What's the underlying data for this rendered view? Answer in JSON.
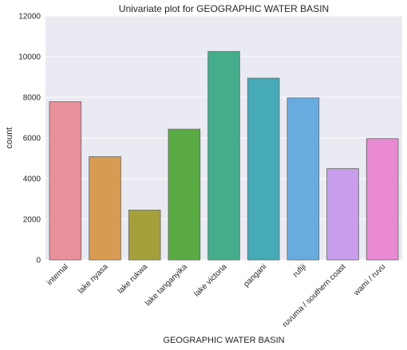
{
  "chart_data": {
    "type": "bar",
    "title": "Univariate plot for GEOGRAPHIC WATER BASIN",
    "xlabel": "GEOGRAPHIC WATER BASIN",
    "ylabel": "count",
    "ylim": [
      0,
      12000
    ],
    "yticks": [
      0,
      2000,
      4000,
      6000,
      8000,
      10000,
      12000
    ],
    "grid": true,
    "categories": [
      "internal",
      "lake nyasa",
      "lake rukwa",
      "lake tanganyika",
      "lake victoria",
      "pangani",
      "rufiji",
      "ruvuma / southern coast",
      "wami / ruvu"
    ],
    "values": [
      7780,
      5080,
      2450,
      6430,
      10250,
      8940,
      7970,
      4490,
      5970
    ],
    "colors": [
      "#e8919b",
      "#d99b52",
      "#a6a03c",
      "#5bab45",
      "#45ad8c",
      "#46aab7",
      "#68acdf",
      "#c89deb",
      "#e889d2"
    ],
    "plot_background": "#eaeaf2"
  }
}
